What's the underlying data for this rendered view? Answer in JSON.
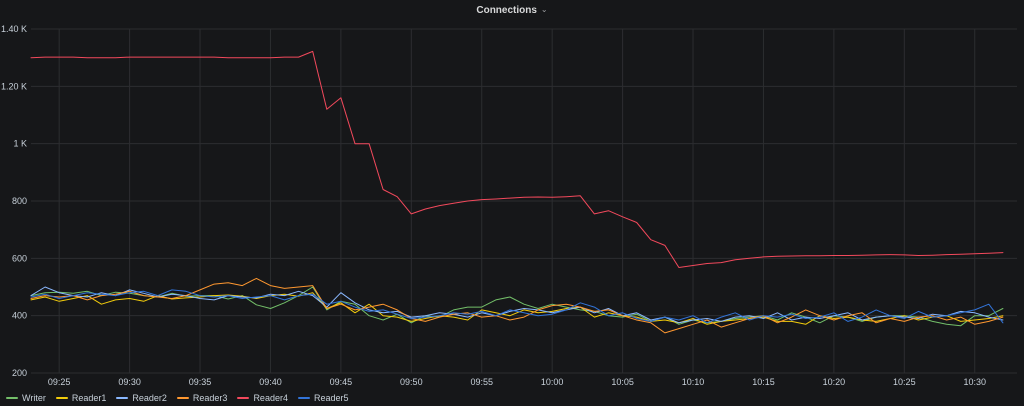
{
  "panel": {
    "title": "Connections",
    "chevron_icon": "chevron-down-icon"
  },
  "chart_data": {
    "type": "line",
    "title": "Connections",
    "xlabel": "",
    "ylabel": "",
    "ylim": [
      200,
      1400
    ],
    "yticks": [
      {
        "value": 200,
        "label": "200"
      },
      {
        "value": 400,
        "label": "400"
      },
      {
        "value": 600,
        "label": "600"
      },
      {
        "value": 800,
        "label": "800"
      },
      {
        "value": 1000,
        "label": "1 K"
      },
      {
        "value": 1200,
        "label": "1.20 K"
      },
      {
        "value": 1400,
        "label": "1.40 K"
      }
    ],
    "xlim": [
      "09:23",
      "10:33"
    ],
    "xticks": [
      "09:25",
      "09:30",
      "09:35",
      "09:40",
      "09:45",
      "09:50",
      "09:55",
      "10:00",
      "10:05",
      "10:10",
      "10:15",
      "10:20",
      "10:25",
      "10:30"
    ],
    "grid": true,
    "legend_position": "bottom-left",
    "series": [
      {
        "name": "Writer",
        "color": "#73bf69",
        "x": [
          "09:23",
          "09:24",
          "09:25",
          "09:26",
          "09:27",
          "09:28",
          "09:29",
          "09:30",
          "09:31",
          "09:32",
          "09:33",
          "09:34",
          "09:35",
          "09:36",
          "09:37",
          "09:38",
          "09:39",
          "09:40",
          "09:41",
          "09:42",
          "09:43",
          "09:44",
          "09:45",
          "09:46",
          "09:47",
          "09:48",
          "09:49",
          "09:50",
          "09:51",
          "09:52",
          "09:53",
          "09:54",
          "09:55",
          "09:56",
          "09:57",
          "09:58",
          "09:59",
          "10:00",
          "10:01",
          "10:02",
          "10:03",
          "10:04",
          "10:05",
          "10:06",
          "10:07",
          "10:08",
          "10:09",
          "10:10",
          "10:11",
          "10:12",
          "10:13",
          "10:14",
          "10:15",
          "10:16",
          "10:17",
          "10:18",
          "10:19",
          "10:20",
          "10:21",
          "10:22",
          "10:23",
          "10:24",
          "10:25",
          "10:26",
          "10:27",
          "10:28",
          "10:29",
          "10:30",
          "10:31",
          "10:32"
        ],
        "values": [
          470,
          480,
          482,
          478,
          485,
          470,
          482,
          478,
          470,
          465,
          478,
          468,
          470,
          470,
          458,
          470,
          438,
          425,
          445,
          470,
          500,
          420,
          450,
          440,
          400,
          385,
          405,
          375,
          400,
          395,
          420,
          430,
          430,
          455,
          465,
          440,
          425,
          440,
          430,
          420,
          415,
          400,
          395,
          405,
          380,
          395,
          370,
          385,
          375,
          380,
          390,
          395,
          400,
          385,
          410,
          395,
          375,
          400,
          395,
          380,
          395,
          400,
          400,
          395,
          380,
          370,
          365,
          400,
          400,
          425
        ]
      },
      {
        "name": "Reader1",
        "color": "#f2cc0c",
        "x": [
          "09:23",
          "09:24",
          "09:25",
          "09:26",
          "09:27",
          "09:28",
          "09:29",
          "09:30",
          "09:31",
          "09:32",
          "09:33",
          "09:34",
          "09:35",
          "09:36",
          "09:37",
          "09:38",
          "09:39",
          "09:40",
          "09:41",
          "09:42",
          "09:43",
          "09:44",
          "09:45",
          "09:46",
          "09:47",
          "09:48",
          "09:49",
          "09:50",
          "09:51",
          "09:52",
          "09:53",
          "09:54",
          "09:55",
          "09:56",
          "09:57",
          "09:58",
          "09:59",
          "10:00",
          "10:01",
          "10:02",
          "10:03",
          "10:04",
          "10:05",
          "10:06",
          "10:07",
          "10:08",
          "10:09",
          "10:10",
          "10:11",
          "10:12",
          "10:13",
          "10:14",
          "10:15",
          "10:16",
          "10:17",
          "10:18",
          "10:19",
          "10:20",
          "10:21",
          "10:22",
          "10:23",
          "10:24",
          "10:25",
          "10:26",
          "10:27",
          "10:28",
          "10:29",
          "10:30",
          "10:31",
          "10:32"
        ],
        "values": [
          455,
          465,
          450,
          460,
          470,
          440,
          455,
          460,
          450,
          470,
          458,
          462,
          465,
          470,
          472,
          468,
          460,
          470,
          475,
          468,
          480,
          425,
          445,
          410,
          440,
          400,
          395,
          380,
          390,
          400,
          395,
          385,
          420,
          410,
          400,
          420,
          410,
          415,
          425,
          430,
          395,
          410,
          400,
          395,
          380,
          385,
          375,
          390,
          370,
          380,
          385,
          390,
          395,
          380,
          380,
          370,
          400,
          390,
          395,
          385,
          380,
          390,
          400,
          385,
          395,
          400,
          380,
          385,
          390,
          400
        ]
      },
      {
        "name": "Reader2",
        "color": "#8ab8ff",
        "x": [
          "09:23",
          "09:24",
          "09:25",
          "09:26",
          "09:27",
          "09:28",
          "09:29",
          "09:30",
          "09:31",
          "09:32",
          "09:33",
          "09:34",
          "09:35",
          "09:36",
          "09:37",
          "09:38",
          "09:39",
          "09:40",
          "09:41",
          "09:42",
          "09:43",
          "09:44",
          "09:45",
          "09:46",
          "09:47",
          "09:48",
          "09:49",
          "09:50",
          "09:51",
          "09:52",
          "09:53",
          "09:54",
          "09:55",
          "09:56",
          "09:57",
          "09:58",
          "09:59",
          "10:00",
          "10:01",
          "10:02",
          "10:03",
          "10:04",
          "10:05",
          "10:06",
          "10:07",
          "10:08",
          "10:09",
          "10:10",
          "10:11",
          "10:12",
          "10:13",
          "10:14",
          "10:15",
          "10:16",
          "10:17",
          "10:18",
          "10:19",
          "10:20",
          "10:21",
          "10:22",
          "10:23",
          "10:24",
          "10:25",
          "10:26",
          "10:27",
          "10:28",
          "10:29",
          "10:30",
          "10:31",
          "10:32"
        ],
        "values": [
          470,
          500,
          480,
          470,
          465,
          480,
          470,
          490,
          478,
          465,
          475,
          470,
          460,
          455,
          470,
          465,
          462,
          475,
          470,
          485,
          470,
          430,
          480,
          445,
          420,
          410,
          415,
          395,
          400,
          410,
          405,
          395,
          410,
          400,
          415,
          425,
          420,
          410,
          420,
          430,
          410,
          425,
          400,
          410,
          385,
          395,
          375,
          385,
          390,
          380,
          395,
          400,
          390,
          410,
          385,
          395,
          390,
          400,
          410,
          385,
          395,
          400,
          395,
          390,
          405,
          400,
          415,
          410,
          395,
          385
        ]
      },
      {
        "name": "Reader3",
        "color": "#ff9830",
        "x": [
          "09:23",
          "09:24",
          "09:25",
          "09:26",
          "09:27",
          "09:28",
          "09:29",
          "09:30",
          "09:31",
          "09:32",
          "09:33",
          "09:34",
          "09:35",
          "09:36",
          "09:37",
          "09:38",
          "09:39",
          "09:40",
          "09:41",
          "09:42",
          "09:43",
          "09:44",
          "09:45",
          "09:46",
          "09:47",
          "09:48",
          "09:49",
          "09:50",
          "09:51",
          "09:52",
          "09:53",
          "09:54",
          "09:55",
          "09:56",
          "09:57",
          "09:58",
          "09:59",
          "10:00",
          "10:01",
          "10:02",
          "10:03",
          "10:04",
          "10:05",
          "10:06",
          "10:07",
          "10:08",
          "10:09",
          "10:10",
          "10:11",
          "10:12",
          "10:13",
          "10:14",
          "10:15",
          "10:16",
          "10:17",
          "10:18",
          "10:19",
          "10:20",
          "10:21",
          "10:22",
          "10:23",
          "10:24",
          "10:25",
          "10:26",
          "10:27",
          "10:28",
          "10:29",
          "10:30",
          "10:31",
          "10:32"
        ],
        "values": [
          460,
          470,
          465,
          470,
          455,
          470,
          475,
          485,
          470,
          465,
          460,
          470,
          490,
          510,
          515,
          505,
          530,
          505,
          495,
          500,
          505,
          425,
          440,
          420,
          430,
          440,
          420,
          390,
          380,
          395,
          405,
          410,
          395,
          400,
          385,
          395,
          420,
          435,
          440,
          430,
          415,
          420,
          400,
          385,
          375,
          340,
          355,
          370,
          385,
          360,
          375,
          390,
          400,
          375,
          395,
          420,
          400,
          385,
          400,
          410,
          375,
          390,
          380,
          395,
          400,
          385,
          395,
          370,
          380,
          395
        ]
      },
      {
        "name": "Reader4",
        "color": "#f2495c",
        "x": [
          "09:23",
          "09:24",
          "09:25",
          "09:26",
          "09:27",
          "09:28",
          "09:29",
          "09:30",
          "09:31",
          "09:32",
          "09:33",
          "09:34",
          "09:35",
          "09:36",
          "09:37",
          "09:38",
          "09:39",
          "09:40",
          "09:41",
          "09:42",
          "09:43",
          "09:44",
          "09:45",
          "09:46",
          "09:47",
          "09:48",
          "09:49",
          "09:50",
          "09:51",
          "09:52",
          "09:53",
          "09:54",
          "09:55",
          "09:56",
          "09:57",
          "09:58",
          "09:59",
          "10:00",
          "10:01",
          "10:02",
          "10:03",
          "10:04",
          "10:05",
          "10:06",
          "10:07",
          "10:08",
          "10:09",
          "10:10",
          "10:11",
          "10:12",
          "10:13",
          "10:14",
          "10:15",
          "10:16",
          "10:17",
          "10:18",
          "10:19",
          "10:20",
          "10:21",
          "10:22",
          "10:23",
          "10:24",
          "10:25",
          "10:26",
          "10:27",
          "10:28",
          "10:29",
          "10:30",
          "10:31",
          "10:32"
        ],
        "values": [
          1300,
          1302,
          1302,
          1302,
          1300,
          1300,
          1300,
          1302,
          1302,
          1302,
          1302,
          1302,
          1302,
          1302,
          1300,
          1300,
          1300,
          1300,
          1302,
          1302,
          1322,
          1120,
          1160,
          1000,
          1000,
          840,
          815,
          755,
          772,
          784,
          792,
          800,
          805,
          807,
          810,
          813,
          814,
          813,
          815,
          818,
          755,
          766,
          745,
          725,
          665,
          645,
          568,
          575,
          582,
          585,
          595,
          600,
          605,
          607,
          608,
          609,
          609,
          610,
          610,
          611,
          612,
          613,
          612,
          610,
          611,
          613,
          614,
          616,
          618,
          620
        ]
      },
      {
        "name": "Reader5",
        "color": "#3274d9",
        "x": [
          "09:23",
          "09:24",
          "09:25",
          "09:26",
          "09:27",
          "09:28",
          "09:29",
          "09:30",
          "09:31",
          "09:32",
          "09:33",
          "09:34",
          "09:35",
          "09:36",
          "09:37",
          "09:38",
          "09:39",
          "09:40",
          "09:41",
          "09:42",
          "09:43",
          "09:44",
          "09:45",
          "09:46",
          "09:47",
          "09:48",
          "09:49",
          "09:50",
          "09:51",
          "09:52",
          "09:53",
          "09:54",
          "09:55",
          "09:56",
          "09:57",
          "09:58",
          "09:59",
          "10:00",
          "10:01",
          "10:02",
          "10:03",
          "10:04",
          "10:05",
          "10:06",
          "10:07",
          "10:08",
          "10:09",
          "10:10",
          "10:11",
          "10:12",
          "10:13",
          "10:14",
          "10:15",
          "10:16",
          "10:17",
          "10:18",
          "10:19",
          "10:20",
          "10:21",
          "10:22",
          "10:23",
          "10:24",
          "10:25",
          "10:26",
          "10:27",
          "10:28",
          "10:29",
          "10:30",
          "10:31",
          "10:32"
        ],
        "values": [
          465,
          475,
          460,
          470,
          480,
          475,
          470,
          480,
          485,
          470,
          490,
          485,
          470,
          465,
          470,
          460,
          465,
          470,
          455,
          470,
          475,
          440,
          450,
          430,
          415,
          420,
          405,
          390,
          395,
          400,
          410,
          405,
          415,
          400,
          420,
          410,
          400,
          405,
          420,
          445,
          430,
          400,
          410,
          390,
          380,
          395,
          385,
          400,
          375,
          395,
          410,
          385,
          400,
          395,
          405,
          390,
          395,
          410,
          380,
          395,
          420,
          400,
          390,
          415,
          395,
          400,
          410,
          420,
          440,
          375
        ]
      }
    ]
  }
}
